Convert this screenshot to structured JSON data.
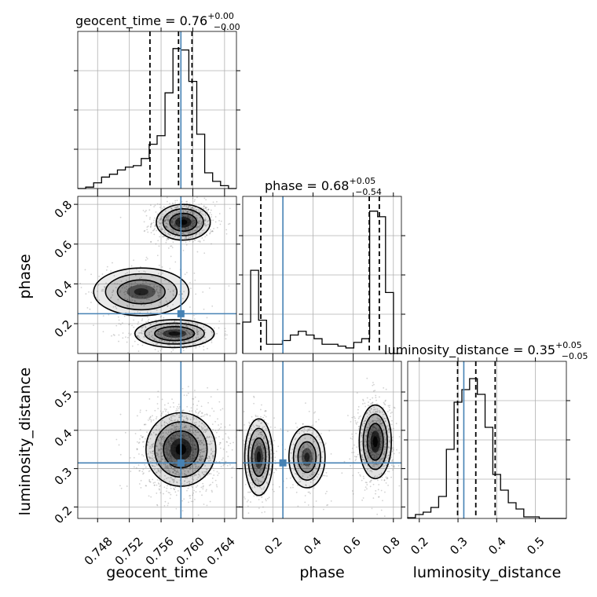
{
  "colors": {
    "truth": "#4682b4",
    "line": "#000000",
    "grid": "#b0b0b0",
    "scatter": "#7f7f7f"
  },
  "chart_data": [
    {
      "type": "histogram",
      "panel": "geocent_time-1d",
      "title_prefix": "geocent_time = 0.76",
      "title_sup": "+0.00",
      "title_sub": "−0.00",
      "xlim": [
        0.7455,
        0.7655
      ],
      "xticks": [
        0.748,
        0.752,
        0.756,
        0.76,
        0.764
      ],
      "xtick_labels": [
        "0.748",
        "0.752",
        "0.756",
        "0.760",
        "0.764"
      ],
      "xlabel": "geocent_time",
      "quantiles": [
        0.7546,
        0.7582,
        0.7599
      ],
      "truth": 0.7585,
      "bin_edges": [
        0.7455,
        0.7465,
        0.7475,
        0.7485,
        0.7495,
        0.7505,
        0.7515,
        0.7525,
        0.7535,
        0.7545,
        0.7555,
        0.7565,
        0.7575,
        0.7585,
        0.7595,
        0.7605,
        0.7615,
        0.7625,
        0.7635,
        0.7645,
        0.7655
      ],
      "counts": [
        0.0,
        0.01,
        0.04,
        0.08,
        0.1,
        0.13,
        0.15,
        0.16,
        0.21,
        0.31,
        0.37,
        0.67,
        0.98,
        0.97,
        0.75,
        0.38,
        0.11,
        0.05,
        0.02,
        0.0
      ],
      "ylim": [
        0,
        1.1
      ]
    },
    {
      "type": "scatter-contour",
      "panel": "phase-vs-geocent_time",
      "xlim": [
        0.7455,
        0.7655
      ],
      "ylim": [
        0.05,
        0.84
      ],
      "yticks": [
        0.2,
        0.4,
        0.6,
        0.8
      ],
      "ytick_labels": [
        "0.2",
        "0.4",
        "0.6",
        "0.8"
      ],
      "ylabel": "phase",
      "truth": [
        0.7585,
        0.25
      ],
      "modes": [
        {
          "center": [
            0.7588,
            0.71
          ],
          "spread": [
            0.0017,
            0.045
          ],
          "weight": 0.52
        },
        {
          "center": [
            0.7577,
            0.15
          ],
          "spread": [
            0.0025,
            0.035
          ],
          "weight": 0.3
        },
        {
          "center": [
            0.7535,
            0.36
          ],
          "spread": [
            0.003,
            0.06
          ],
          "weight": 0.18
        }
      ]
    },
    {
      "type": "histogram",
      "panel": "phase-1d",
      "title_prefix": "phase = 0.68",
      "title_sup": "+0.05",
      "title_sub": "−0.54",
      "xlim": [
        0.05,
        0.84
      ],
      "xticks": [
        0.2,
        0.4,
        0.6,
        0.8
      ],
      "xtick_labels": [
        "0.2",
        "0.4",
        "0.6",
        "0.8"
      ],
      "xlabel": "phase",
      "quantiles": [
        0.14,
        0.68,
        0.73
      ],
      "truth": 0.25,
      "bin_edges": [
        0.05,
        0.0895,
        0.129,
        0.1685,
        0.208,
        0.2475,
        0.287,
        0.3265,
        0.366,
        0.4055,
        0.445,
        0.4845,
        0.524,
        0.5635,
        0.603,
        0.6425,
        0.682,
        0.7215,
        0.761,
        0.8005,
        0.84
      ],
      "counts": [
        0.17,
        0.45,
        0.18,
        0.05,
        0.05,
        0.07,
        0.1,
        0.12,
        0.1,
        0.08,
        0.05,
        0.05,
        0.04,
        0.03,
        0.06,
        0.08,
        0.77,
        0.74,
        0.33,
        0.0
      ],
      "ylim": [
        0,
        0.85
      ]
    },
    {
      "type": "scatter-contour",
      "panel": "luminosity_distance-vs-geocent_time",
      "xlim": [
        0.7455,
        0.7655
      ],
      "ylim": [
        0.17,
        0.58
      ],
      "yticks": [
        0.2,
        0.3,
        0.4,
        0.5
      ],
      "ytick_labels": [
        "0.2",
        "0.3",
        "0.4",
        "0.5"
      ],
      "ylabel": "luminosity_distance",
      "truth": [
        0.7585,
        0.315
      ],
      "modes": [
        {
          "center": [
            0.7585,
            0.35
          ],
          "spread": [
            0.0022,
            0.048
          ],
          "weight": 1.0
        }
      ]
    },
    {
      "type": "scatter-contour",
      "panel": "luminosity_distance-vs-phase",
      "xlim": [
        0.05,
        0.84
      ],
      "ylim": [
        0.17,
        0.58
      ],
      "truth": [
        0.25,
        0.315
      ],
      "modes": [
        {
          "center": [
            0.71,
            0.37
          ],
          "spread": [
            0.04,
            0.048
          ],
          "weight": 0.52
        },
        {
          "center": [
            0.13,
            0.33
          ],
          "spread": [
            0.035,
            0.05
          ],
          "weight": 0.3
        },
        {
          "center": [
            0.37,
            0.33
          ],
          "spread": [
            0.045,
            0.04
          ],
          "weight": 0.18
        }
      ]
    },
    {
      "type": "histogram",
      "panel": "luminosity_distance-1d",
      "title_prefix": "luminosity_distance = 0.35",
      "title_sup": "+0.05",
      "title_sub": "−0.05",
      "xlim": [
        0.17,
        0.58
      ],
      "xticks": [
        0.2,
        0.3,
        0.4,
        0.5
      ],
      "xtick_labels": [
        "0.2",
        "0.3",
        "0.4",
        "0.5"
      ],
      "xlabel": "luminosity_distance",
      "quantiles": [
        0.299,
        0.346,
        0.396
      ],
      "truth": 0.315,
      "bin_edges": [
        0.17,
        0.19,
        0.21,
        0.23,
        0.25,
        0.27,
        0.29,
        0.31,
        0.33,
        0.35,
        0.37,
        0.39,
        0.41,
        0.43,
        0.45,
        0.47,
        0.49,
        0.51,
        0.53,
        0.55,
        0.58
      ],
      "counts": [
        0.005,
        0.025,
        0.04,
        0.07,
        0.14,
        0.44,
        0.74,
        0.82,
        0.89,
        0.79,
        0.58,
        0.28,
        0.18,
        0.1,
        0.06,
        0.01,
        0.01,
        0.0,
        0.0,
        0.0
      ],
      "ylim": [
        0,
        1.0
      ]
    }
  ]
}
